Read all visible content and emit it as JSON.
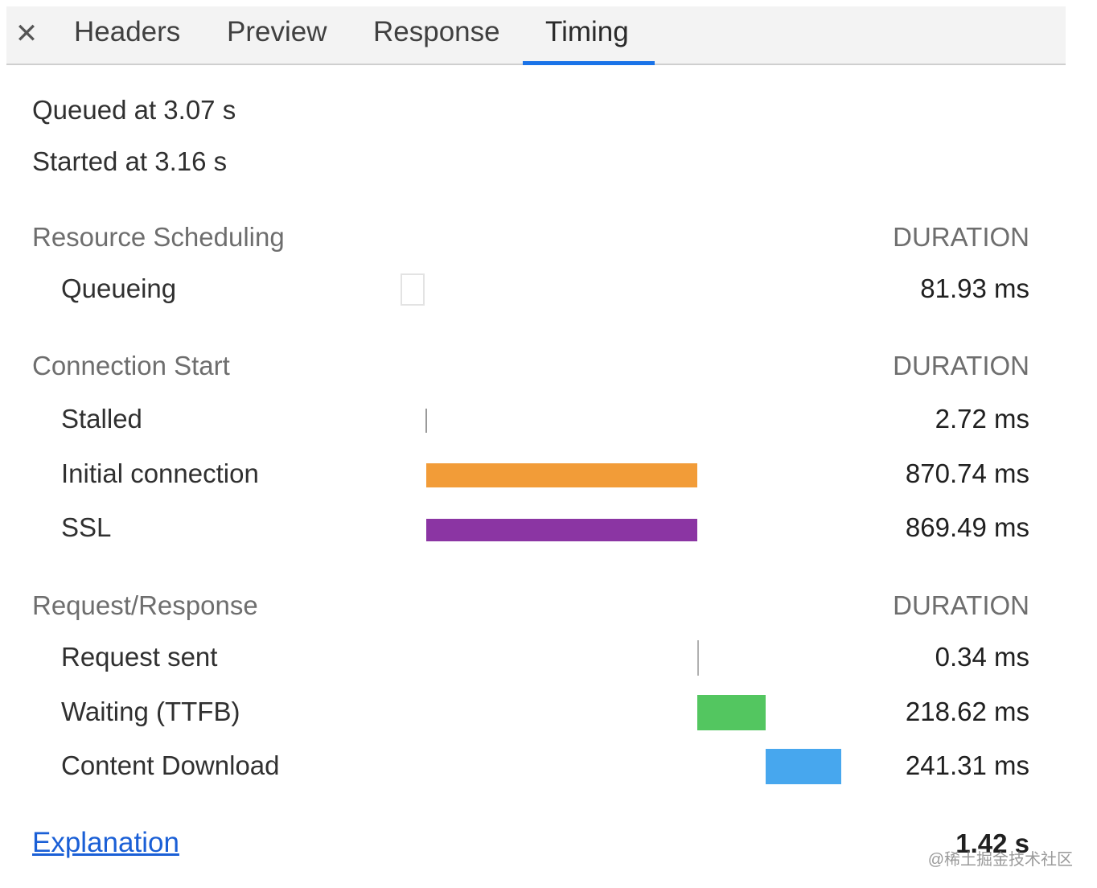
{
  "tabs": {
    "close_symbol": "✕",
    "items": [
      {
        "label": "Headers"
      },
      {
        "label": "Preview"
      },
      {
        "label": "Response"
      },
      {
        "label": "Timing"
      }
    ],
    "active": "Timing"
  },
  "summary": {
    "queued": "Queued at 3.07 s",
    "started": "Started at 3.16 s"
  },
  "sections": [
    {
      "title": "Resource Scheduling",
      "duration_header": "DURATION",
      "rows": [
        {
          "label": "Queueing",
          "value": "81.93 ms"
        }
      ]
    },
    {
      "title": "Connection Start",
      "duration_header": "DURATION",
      "rows": [
        {
          "label": "Stalled",
          "value": "2.72 ms"
        },
        {
          "label": "Initial connection",
          "value": "870.74 ms"
        },
        {
          "label": "SSL",
          "value": "869.49 ms"
        }
      ]
    },
    {
      "title": "Request/Response",
      "duration_header": "DURATION",
      "rows": [
        {
          "label": "Request sent",
          "value": "0.34 ms"
        },
        {
          "label": "Waiting (TTFB)",
          "value": "218.62 ms"
        },
        {
          "label": "Content Download",
          "value": "241.31 ms"
        }
      ]
    }
  ],
  "footer": {
    "explanation_label": "Explanation",
    "total": "1.42 s"
  },
  "watermark": "@稀土掘金技术社区",
  "colors": {
    "initial_connection": "#f29c38",
    "ssl": "#8b35a3",
    "waiting": "#53c660",
    "content_download": "#47a7ee",
    "tab_accent": "#1a73e8",
    "link": "#1a5fd6"
  }
}
